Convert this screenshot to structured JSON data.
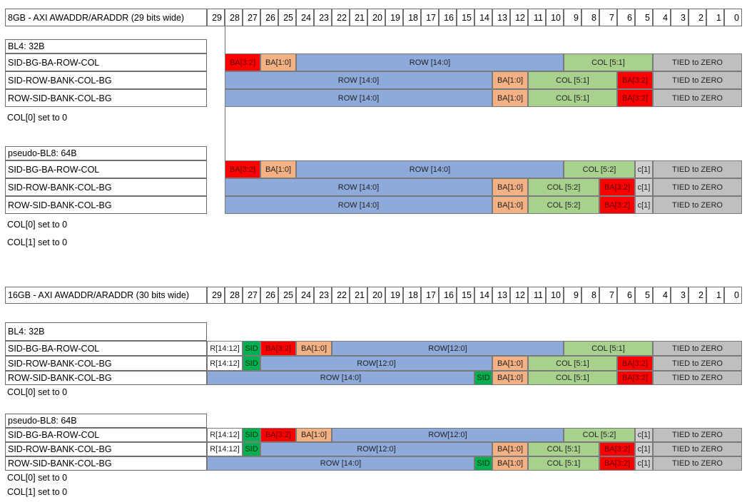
{
  "sections": [
    {
      "header": "8GB - AXI AWADDR/ARADDR (29 bits wide)",
      "bits": [
        29,
        28,
        27,
        26,
        25,
        24,
        23,
        22,
        21,
        20,
        19,
        18,
        17,
        16,
        15,
        14,
        13,
        12,
        11,
        10,
        9,
        8,
        7,
        6,
        5,
        4,
        3,
        2,
        1,
        0
      ],
      "groups": [
        {
          "title": "BL4: 32B",
          "rows": [
            {
              "label": "SID-BG-BA-ROW-COL",
              "fields": [
                "BA[3:2]",
                "BA[1:0]",
                "ROW [14:0]",
                "COL [5:1]",
                "TIED to ZERO"
              ]
            },
            {
              "label": "SID-ROW-BANK-COL-BG",
              "fields": [
                "ROW [14:0]",
                "BA[1:0]",
                "COL [5:1]",
                "BA[3:2]",
                "TIED to ZERO"
              ]
            },
            {
              "label": "ROW-SID-BANK-COL-BG",
              "fields": [
                "ROW [14:0]",
                "BA[1:0]",
                "COL [5:1]",
                "BA[3:2]",
                "TIED to ZERO"
              ]
            }
          ],
          "notes": [
            "COL[0] set to 0"
          ]
        },
        {
          "title": "pseudo-BL8: 64B",
          "rows": [
            {
              "label": "SID-BG-BA-ROW-COL",
              "fields": [
                "BA[3:2]",
                "BA[1:0]",
                "ROW [14:0]",
                "COL [5:2]",
                "c[1]",
                "TIED to ZERO"
              ]
            },
            {
              "label": "SID-ROW-BANK-COL-BG",
              "fields": [
                "ROW [14:0]",
                "BA[1:0]",
                "COL [5:2]",
                "BA[3:2]",
                "c[1]",
                "TIED to ZERO"
              ]
            },
            {
              "label": "ROW-SID-BANK-COL-BG",
              "fields": [
                "ROW [14:0]",
                "BA[1:0]",
                "COL [5:2]",
                "BA[3:2]",
                "c[1]",
                "TIED to ZERO"
              ]
            }
          ],
          "notes": [
            "COL[0] set to 0",
            "COL[1] set to 0"
          ]
        }
      ]
    },
    {
      "header": "16GB - AXI AWADDR/ARADDR (30 bits wide)",
      "bits": [
        29,
        28,
        27,
        26,
        25,
        24,
        23,
        22,
        21,
        20,
        19,
        18,
        17,
        16,
        15,
        14,
        13,
        12,
        11,
        10,
        9,
        8,
        7,
        6,
        5,
        4,
        3,
        2,
        1,
        0
      ],
      "groups": [
        {
          "title": "BL4: 32B",
          "rows": [
            {
              "label": "SID-BG-BA-ROW-COL",
              "fields": [
                "R[14:12]",
                "SID",
                "BA[3:2]",
                "BA[1:0]",
                "ROW[12:0]",
                "COL [5:1]",
                "TIED to ZERO"
              ]
            },
            {
              "label": "SID-ROW-BANK-COL-BG",
              "fields": [
                "R[14:12]",
                "SID",
                "ROW[12:0]",
                "BA[1:0]",
                "COL [5:1]",
                "BA[3:2]",
                "TIED to ZERO"
              ]
            },
            {
              "label": "ROW-SID-BANK-COL-BG",
              "fields": [
                "ROW [14:0]",
                "SID",
                "BA[1:0]",
                "COL [5:1]",
                "BA[3:2]",
                "TIED to ZERO"
              ]
            }
          ],
          "notes": [
            "COL[0] set to 0"
          ]
        },
        {
          "title": "pseudo-BL8: 64B",
          "rows": [
            {
              "label": "SID-BG-BA-ROW-COL",
              "fields": [
                "R[14:12]",
                "SID",
                "BA[3:2]",
                "BA[1:0]",
                "ROW[12:0]",
                "COL [5:2]",
                "c[1]",
                "TIED to ZERO"
              ]
            },
            {
              "label": "SID-ROW-BANK-COL-BG",
              "fields": [
                "R[14:12]",
                "SID",
                "ROW[12:0]",
                "BA[1:0]",
                "COL [5:1]",
                "BA[3:2]",
                "c[1]",
                "TIED to ZERO"
              ]
            },
            {
              "label": "ROW-SID-BANK-COL-BG",
              "fields": [
                "ROW [14:0]",
                "SID",
                "BA[1:0]",
                "COL [5:1]",
                "BA[3:2]",
                "c[1]",
                "TIED to ZERO"
              ]
            }
          ],
          "notes": [
            "COL[0] set to 0",
            "COL[1] set to 0"
          ]
        }
      ]
    }
  ]
}
